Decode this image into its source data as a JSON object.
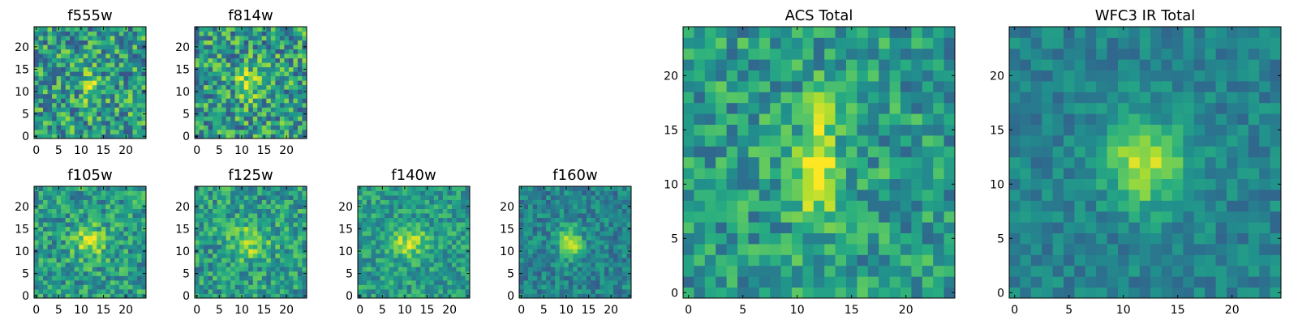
{
  "chart_data": [
    {
      "type": "heatmap",
      "title": "f555w",
      "xlabel": "",
      "ylabel": "",
      "grid": false,
      "xlim": [
        -0.5,
        24.5
      ],
      "ylim": [
        -0.5,
        24.5
      ],
      "xticks": [
        0,
        5,
        10,
        15,
        20
      ],
      "yticks": [
        0,
        5,
        10,
        15,
        20
      ],
      "colormap": "viridis",
      "size": [
        25,
        25
      ]
    },
    {
      "type": "heatmap",
      "title": "f814w",
      "xlabel": "",
      "ylabel": "",
      "grid": false,
      "xlim": [
        -0.5,
        24.5
      ],
      "ylim": [
        -0.5,
        24.5
      ],
      "xticks": [
        0,
        5,
        10,
        15,
        20
      ],
      "yticks": [
        0,
        5,
        10,
        15,
        20
      ],
      "colormap": "viridis",
      "size": [
        25,
        25
      ]
    },
    {
      "type": "heatmap",
      "title": "f105w",
      "xlabel": "",
      "ylabel": "",
      "grid": false,
      "xlim": [
        -0.5,
        24.5
      ],
      "ylim": [
        -0.5,
        24.5
      ],
      "xticks": [
        0,
        5,
        10,
        15,
        20
      ],
      "yticks": [
        0,
        5,
        10,
        15,
        20
      ],
      "colormap": "viridis",
      "size": [
        25,
        25
      ]
    },
    {
      "type": "heatmap",
      "title": "f125w",
      "xlabel": "",
      "ylabel": "",
      "grid": false,
      "xlim": [
        -0.5,
        24.5
      ],
      "ylim": [
        -0.5,
        24.5
      ],
      "xticks": [
        0,
        5,
        10,
        15,
        20
      ],
      "yticks": [
        0,
        5,
        10,
        15,
        20
      ],
      "colormap": "viridis",
      "size": [
        25,
        25
      ]
    },
    {
      "type": "heatmap",
      "title": "f140w",
      "xlabel": "",
      "ylabel": "",
      "grid": false,
      "xlim": [
        -0.5,
        24.5
      ],
      "ylim": [
        -0.5,
        24.5
      ],
      "xticks": [
        0,
        5,
        10,
        15,
        20
      ],
      "yticks": [
        0,
        5,
        10,
        15,
        20
      ],
      "colormap": "viridis",
      "size": [
        25,
        25
      ]
    },
    {
      "type": "heatmap",
      "title": "f160w",
      "xlabel": "",
      "ylabel": "",
      "grid": false,
      "xlim": [
        -0.5,
        24.5
      ],
      "ylim": [
        -0.5,
        24.5
      ],
      "xticks": [
        0,
        5,
        10,
        15,
        20
      ],
      "yticks": [
        0,
        5,
        10,
        15,
        20
      ],
      "colormap": "viridis",
      "size": [
        25,
        25
      ]
    },
    {
      "type": "heatmap",
      "title": "ACS Total",
      "xlabel": "",
      "ylabel": "",
      "grid": false,
      "xlim": [
        -0.5,
        24.5
      ],
      "ylim": [
        -0.5,
        24.5
      ],
      "xticks": [
        0,
        5,
        10,
        15,
        20
      ],
      "yticks": [
        0,
        5,
        10,
        15,
        20
      ],
      "colormap": "viridis",
      "size": [
        25,
        25
      ]
    },
    {
      "type": "heatmap",
      "title": "WFC3 IR Total",
      "xlabel": "",
      "ylabel": "",
      "grid": false,
      "xlim": [
        -0.5,
        24.5
      ],
      "ylim": [
        -0.5,
        24.5
      ],
      "xticks": [
        0,
        5,
        10,
        15,
        20
      ],
      "yticks": [
        0,
        5,
        10,
        15,
        20
      ],
      "colormap": "viridis",
      "size": [
        25,
        25
      ]
    }
  ]
}
